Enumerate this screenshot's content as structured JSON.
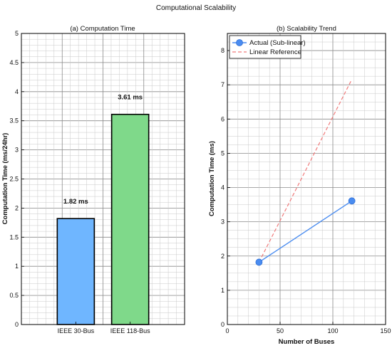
{
  "figure_title": "Computational Scalability",
  "chart_data": [
    {
      "type": "bar",
      "title": "(a) Computation Time",
      "xlabel": "",
      "ylabel": "Computation Time (ms/24hr)",
      "categories": [
        "IEEE 30-Bus",
        "IEEE 118-Bus"
      ],
      "values": [
        1.82,
        3.61
      ],
      "value_labels": [
        "1.82 ms",
        "3.61 ms"
      ],
      "ylim": [
        0,
        5
      ],
      "yticks": [
        0,
        0.5,
        1,
        1.5,
        2,
        2.5,
        3,
        3.5,
        4,
        4.5,
        5
      ],
      "ytick_labels": [
        "0",
        "0.5",
        "1",
        "1.5",
        "2",
        "2.5",
        "3",
        "3.5",
        "4",
        "4.5",
        "5"
      ],
      "colors": [
        "#6fb6ff",
        "#7fd98a"
      ],
      "grid": true
    },
    {
      "type": "line",
      "title": "(b) Scalability Trend",
      "xlabel": "Number of Buses",
      "ylabel": "Computation Time (ms)",
      "xlim": [
        0,
        150
      ],
      "ylim": [
        0,
        8.5
      ],
      "xticks": [
        0,
        50,
        100,
        150
      ],
      "xtick_labels": [
        "0",
        "50",
        "100",
        "150"
      ],
      "yticks": [
        0,
        1,
        2,
        3,
        4,
        5,
        6,
        7,
        8
      ],
      "ytick_labels": [
        "0",
        "1",
        "2",
        "3",
        "4",
        "5",
        "6",
        "7",
        "8"
      ],
      "grid": true,
      "legend_position": "top-left",
      "series": [
        {
          "name": "Actual (Sub-linear)",
          "x": [
            30,
            118
          ],
          "y": [
            1.82,
            3.61
          ],
          "color": "#4a8cf0",
          "style": "solid",
          "marker": "circle"
        },
        {
          "name": "Linear Reference",
          "x": [
            30,
            118
          ],
          "y": [
            1.82,
            7.16
          ],
          "color": "#f07a7a",
          "style": "dashed",
          "marker": "none"
        }
      ]
    }
  ]
}
